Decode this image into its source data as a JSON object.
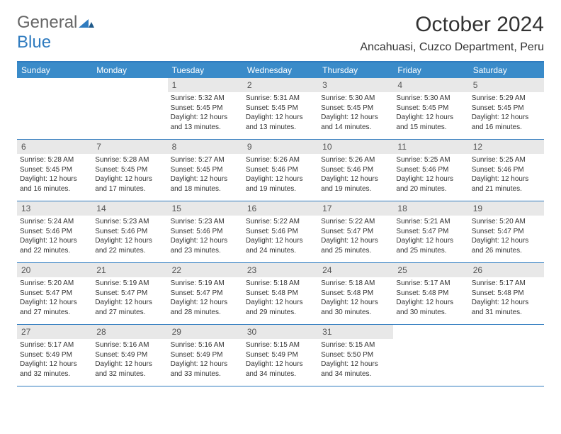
{
  "brand": {
    "part1": "General",
    "part2": "Blue"
  },
  "title": "October 2024",
  "location": "Ancahuasi, Cuzco Department, Peru",
  "colors": {
    "header_bg": "#3a8bc9",
    "header_text": "#ffffff",
    "border": "#2f7bbf",
    "daynum_bg": "#e8e8e8",
    "text": "#333333"
  },
  "weekdays": [
    "Sunday",
    "Monday",
    "Tuesday",
    "Wednesday",
    "Thursday",
    "Friday",
    "Saturday"
  ],
  "weeks": [
    [
      null,
      null,
      {
        "n": "1",
        "sr": "5:32 AM",
        "ss": "5:45 PM",
        "dl": "12 hours and 13 minutes."
      },
      {
        "n": "2",
        "sr": "5:31 AM",
        "ss": "5:45 PM",
        "dl": "12 hours and 13 minutes."
      },
      {
        "n": "3",
        "sr": "5:30 AM",
        "ss": "5:45 PM",
        "dl": "12 hours and 14 minutes."
      },
      {
        "n": "4",
        "sr": "5:30 AM",
        "ss": "5:45 PM",
        "dl": "12 hours and 15 minutes."
      },
      {
        "n": "5",
        "sr": "5:29 AM",
        "ss": "5:45 PM",
        "dl": "12 hours and 16 minutes."
      }
    ],
    [
      {
        "n": "6",
        "sr": "5:28 AM",
        "ss": "5:45 PM",
        "dl": "12 hours and 16 minutes."
      },
      {
        "n": "7",
        "sr": "5:28 AM",
        "ss": "5:45 PM",
        "dl": "12 hours and 17 minutes."
      },
      {
        "n": "8",
        "sr": "5:27 AM",
        "ss": "5:45 PM",
        "dl": "12 hours and 18 minutes."
      },
      {
        "n": "9",
        "sr": "5:26 AM",
        "ss": "5:46 PM",
        "dl": "12 hours and 19 minutes."
      },
      {
        "n": "10",
        "sr": "5:26 AM",
        "ss": "5:46 PM",
        "dl": "12 hours and 19 minutes."
      },
      {
        "n": "11",
        "sr": "5:25 AM",
        "ss": "5:46 PM",
        "dl": "12 hours and 20 minutes."
      },
      {
        "n": "12",
        "sr": "5:25 AM",
        "ss": "5:46 PM",
        "dl": "12 hours and 21 minutes."
      }
    ],
    [
      {
        "n": "13",
        "sr": "5:24 AM",
        "ss": "5:46 PM",
        "dl": "12 hours and 22 minutes."
      },
      {
        "n": "14",
        "sr": "5:23 AM",
        "ss": "5:46 PM",
        "dl": "12 hours and 22 minutes."
      },
      {
        "n": "15",
        "sr": "5:23 AM",
        "ss": "5:46 PM",
        "dl": "12 hours and 23 minutes."
      },
      {
        "n": "16",
        "sr": "5:22 AM",
        "ss": "5:46 PM",
        "dl": "12 hours and 24 minutes."
      },
      {
        "n": "17",
        "sr": "5:22 AM",
        "ss": "5:47 PM",
        "dl": "12 hours and 25 minutes."
      },
      {
        "n": "18",
        "sr": "5:21 AM",
        "ss": "5:47 PM",
        "dl": "12 hours and 25 minutes."
      },
      {
        "n": "19",
        "sr": "5:20 AM",
        "ss": "5:47 PM",
        "dl": "12 hours and 26 minutes."
      }
    ],
    [
      {
        "n": "20",
        "sr": "5:20 AM",
        "ss": "5:47 PM",
        "dl": "12 hours and 27 minutes."
      },
      {
        "n": "21",
        "sr": "5:19 AM",
        "ss": "5:47 PM",
        "dl": "12 hours and 27 minutes."
      },
      {
        "n": "22",
        "sr": "5:19 AM",
        "ss": "5:47 PM",
        "dl": "12 hours and 28 minutes."
      },
      {
        "n": "23",
        "sr": "5:18 AM",
        "ss": "5:48 PM",
        "dl": "12 hours and 29 minutes."
      },
      {
        "n": "24",
        "sr": "5:18 AM",
        "ss": "5:48 PM",
        "dl": "12 hours and 30 minutes."
      },
      {
        "n": "25",
        "sr": "5:17 AM",
        "ss": "5:48 PM",
        "dl": "12 hours and 30 minutes."
      },
      {
        "n": "26",
        "sr": "5:17 AM",
        "ss": "5:48 PM",
        "dl": "12 hours and 31 minutes."
      }
    ],
    [
      {
        "n": "27",
        "sr": "5:17 AM",
        "ss": "5:49 PM",
        "dl": "12 hours and 32 minutes."
      },
      {
        "n": "28",
        "sr": "5:16 AM",
        "ss": "5:49 PM",
        "dl": "12 hours and 32 minutes."
      },
      {
        "n": "29",
        "sr": "5:16 AM",
        "ss": "5:49 PM",
        "dl": "12 hours and 33 minutes."
      },
      {
        "n": "30",
        "sr": "5:15 AM",
        "ss": "5:49 PM",
        "dl": "12 hours and 34 minutes."
      },
      {
        "n": "31",
        "sr": "5:15 AM",
        "ss": "5:50 PM",
        "dl": "12 hours and 34 minutes."
      },
      null,
      null
    ]
  ],
  "labels": {
    "sunrise": "Sunrise:",
    "sunset": "Sunset:",
    "daylight": "Daylight:"
  }
}
